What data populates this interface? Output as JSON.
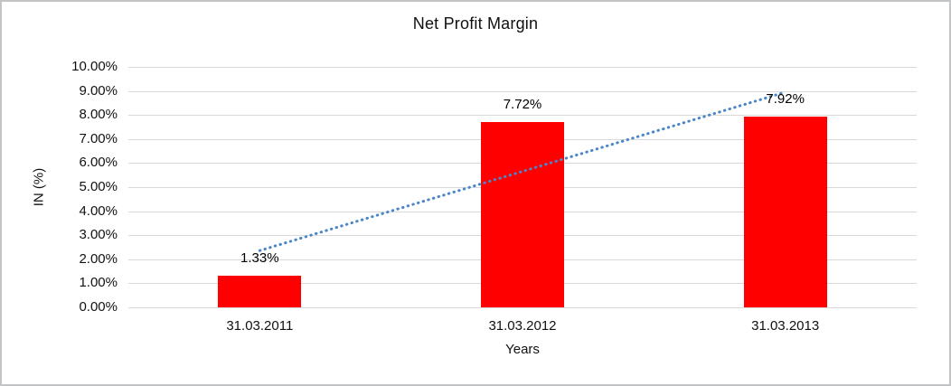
{
  "chart_data": {
    "type": "bar",
    "title": "Net Profit Margin",
    "xlabel": "Years",
    "ylabel": "IN (%)",
    "categories": [
      "31.03.2011",
      "31.03.2012",
      "31.03.2013"
    ],
    "values": [
      1.33,
      7.72,
      7.92
    ],
    "data_labels": [
      "1.33%",
      "7.72%",
      "7.92%"
    ],
    "ylim": [
      0,
      10
    ],
    "ytick_step": 1,
    "ytick_labels": [
      "0.00%",
      "1.00%",
      "2.00%",
      "3.00%",
      "4.00%",
      "5.00%",
      "6.00%",
      "7.00%",
      "8.00%",
      "9.00%",
      "10.00%"
    ],
    "grid": true,
    "legend": "none",
    "bar_color": "#ff0000",
    "gridline_color": "#d9d9d9",
    "text_color": "#111111",
    "frame_border_color": "#c2c4c6",
    "trendline": {
      "type": "linear",
      "style": "dotted",
      "color": "#4a86c8",
      "start_value": 2.36,
      "end_value": 8.95
    }
  }
}
